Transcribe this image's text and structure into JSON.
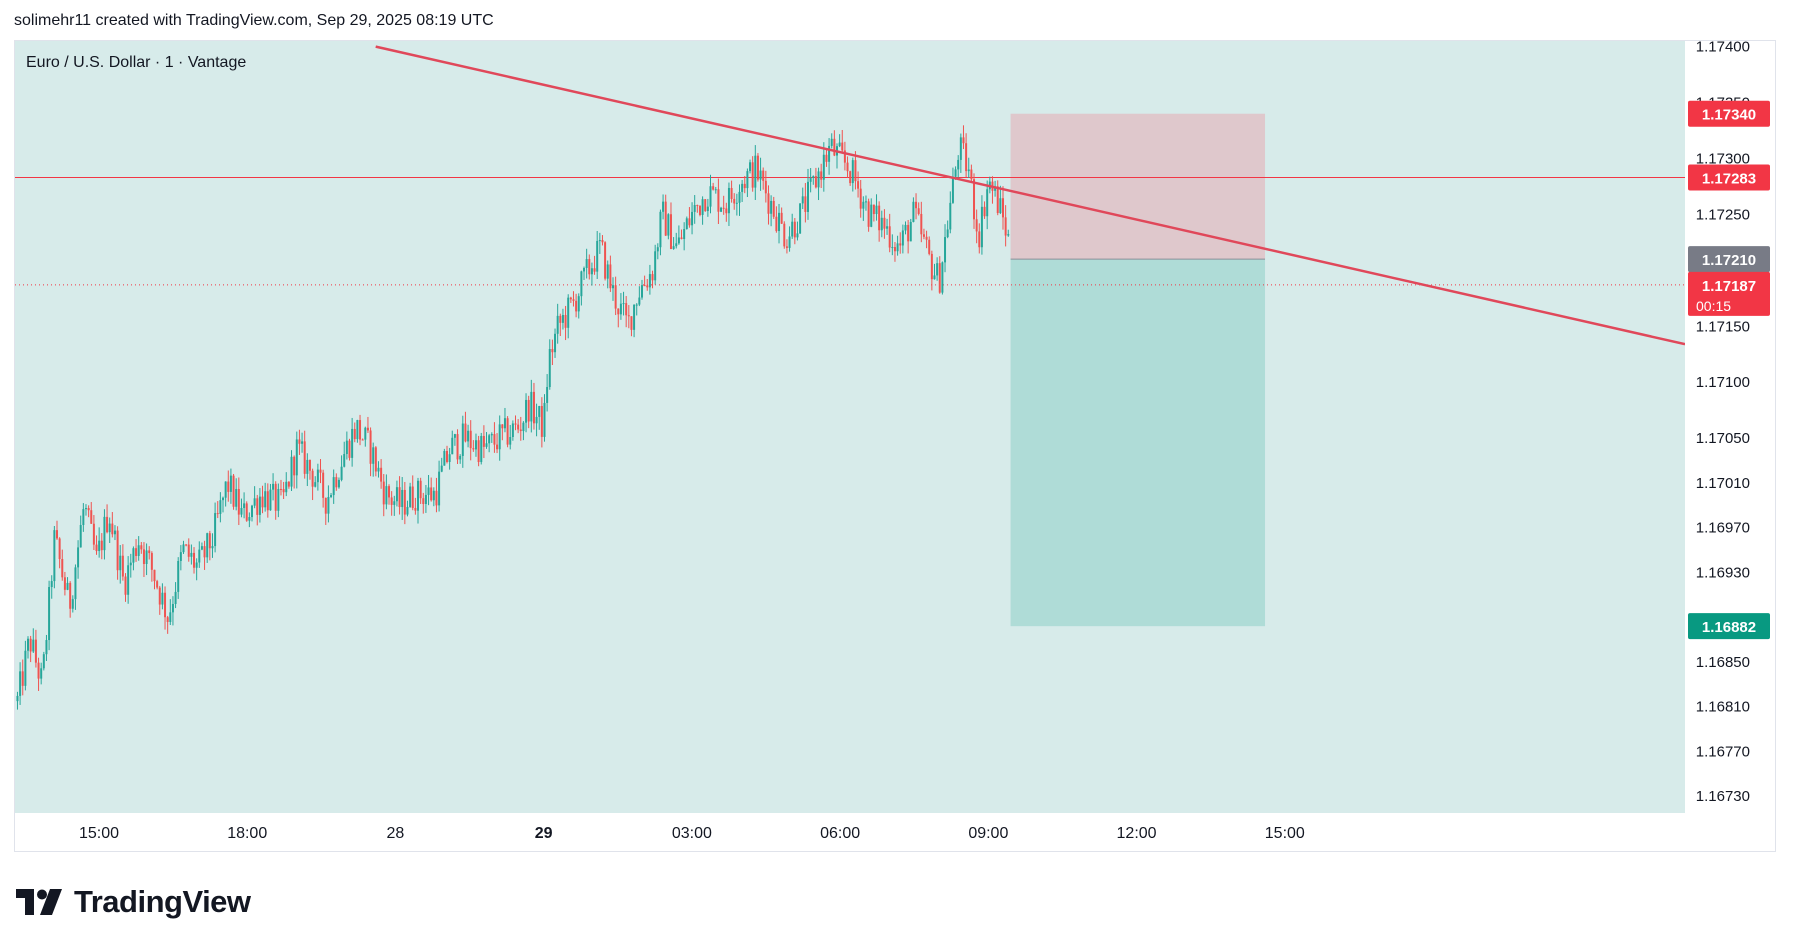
{
  "header": {
    "caption": "solimehr11 created with TradingView.com, Sep 29, 2025 08:19 UTC"
  },
  "chart_title": "Euro / U.S. Dollar · 1 · Vantage",
  "footer": {
    "logo_text": "TradingView"
  },
  "colors": {
    "background": "#d7ebea",
    "up_candle": "#26a69a",
    "down_candle": "#ef5350",
    "trendline": "#e0485a",
    "stop_zone": "#dfc8cc",
    "target_zone": "#afdcd7",
    "red_label": "#f23645",
    "green_label": "#089981",
    "gray_label": "#787b86"
  },
  "chart_data": {
    "type": "candlestick",
    "symbol": "Euro / U.S. Dollar",
    "interval": "1",
    "broker": "Vantage",
    "ylim": [
      1.16715,
      1.17405
    ],
    "y_ticks": [
      "1.17400",
      "1.17350",
      "1.17300",
      "1.17250",
      "1.17150",
      "1.17100",
      "1.17050",
      "1.17010",
      "1.16970",
      "1.16930",
      "1.16850",
      "1.16810",
      "1.16770",
      "1.16730"
    ],
    "x_ticks": [
      {
        "label": "15:00",
        "hour": 15,
        "bold": false
      },
      {
        "label": "18:00",
        "hour": 18,
        "bold": false
      },
      {
        "label": "28",
        "hour": 21,
        "bold": false
      },
      {
        "label": "29",
        "hour": 24,
        "bold": true
      },
      {
        "label": "03:00",
        "hour": 27,
        "bold": false
      },
      {
        "label": "06:00",
        "hour": 30,
        "bold": false
      },
      {
        "label": "09:00",
        "hour": 33,
        "bold": false
      },
      {
        "label": "12:00",
        "hour": 36,
        "bold": false
      },
      {
        "label": "15:00",
        "hour": 39,
        "bold": false
      }
    ],
    "x_range_hours": [
      13.3,
      47.1
    ],
    "price_path": [
      [
        13.35,
        1.16815
      ],
      [
        13.6,
        1.1687
      ],
      [
        13.85,
        1.1683
      ],
      [
        14.1,
        1.1696
      ],
      [
        14.4,
        1.169
      ],
      [
        14.7,
        1.1699
      ],
      [
        14.95,
        1.1694
      ],
      [
        15.2,
        1.16985
      ],
      [
        15.5,
        1.1692
      ],
      [
        15.8,
        1.1696
      ],
      [
        16.1,
        1.1693
      ],
      [
        16.4,
        1.1689
      ],
      [
        16.7,
        1.1695
      ],
      [
        17.0,
        1.16935
      ],
      [
        17.3,
        1.1696
      ],
      [
        17.6,
        1.1701
      ],
      [
        17.9,
        1.1698
      ],
      [
        18.3,
        1.17
      ],
      [
        18.7,
        1.1699
      ],
      [
        19.0,
        1.1704
      ],
      [
        19.3,
        1.1702
      ],
      [
        19.6,
        1.16995
      ],
      [
        19.9,
        1.1703
      ],
      [
        20.2,
        1.1706
      ],
      [
        20.5,
        1.1704
      ],
      [
        20.8,
        1.17
      ],
      [
        21.1,
        1.1699
      ],
      [
        21.4,
        1.17
      ],
      [
        21.8,
        1.17
      ],
      [
        22.1,
        1.1704
      ],
      [
        22.4,
        1.1705
      ],
      [
        22.8,
        1.1704
      ],
      [
        23.1,
        1.1705
      ],
      [
        23.5,
        1.1706
      ],
      [
        23.7,
        1.1708
      ],
      [
        24.0,
        1.1706
      ],
      [
        24.1,
        1.1712
      ],
      [
        24.3,
        1.1715
      ],
      [
        24.6,
        1.1717
      ],
      [
        24.9,
        1.172
      ],
      [
        25.15,
        1.1722
      ],
      [
        25.4,
        1.1718
      ],
      [
        25.7,
        1.1715
      ],
      [
        25.9,
        1.1718
      ],
      [
        26.2,
        1.172
      ],
      [
        26.4,
        1.1725
      ],
      [
        26.7,
        1.1722
      ],
      [
        27.0,
        1.1725
      ],
      [
        27.3,
        1.1727
      ],
      [
        27.7,
        1.1726
      ],
      [
        28.0,
        1.1728
      ],
      [
        28.3,
        1.1729
      ],
      [
        28.6,
        1.1726
      ],
      [
        28.9,
        1.1723
      ],
      [
        29.2,
        1.1725
      ],
      [
        29.5,
        1.1728
      ],
      [
        29.8,
        1.1731
      ],
      [
        30.0,
        1.173
      ],
      [
        30.2,
        1.1729
      ],
      [
        30.4,
        1.1727
      ],
      [
        30.6,
        1.1725
      ],
      [
        30.9,
        1.1724
      ],
      [
        31.2,
        1.1722
      ],
      [
        31.5,
        1.1725
      ],
      [
        31.8,
        1.1721
      ],
      [
        32.0,
        1.1719
      ],
      [
        32.2,
        1.1725
      ],
      [
        32.4,
        1.1731
      ],
      [
        32.6,
        1.1729
      ],
      [
        32.8,
        1.1723
      ],
      [
        33.0,
        1.1728
      ],
      [
        33.2,
        1.1726
      ],
      [
        33.4,
        1.1723
      ],
      [
        33.45,
        1.17187
      ]
    ],
    "current_time_hour": 33.45,
    "trendline": {
      "x1": 20.6,
      "y1": 1.174,
      "x2": 47.1,
      "y2": 1.17134
    },
    "horizontal_lines": [
      {
        "price": 1.17283,
        "style": "solid"
      },
      {
        "price": 1.17187,
        "style": "dotted"
      }
    ],
    "position": {
      "type": "short",
      "x_start_hour": 33.45,
      "x_end_hour": 38.6,
      "entry": 1.1721,
      "stop": 1.1734,
      "target": 1.16882
    },
    "price_labels": [
      {
        "price": 1.1734,
        "text": "1.17340",
        "kind": "stop"
      },
      {
        "price": 1.17283,
        "text": "1.17283",
        "kind": "line"
      },
      {
        "price": 1.1721,
        "text": "1.17210",
        "kind": "entry"
      },
      {
        "price": 1.17187,
        "text": "1.17187",
        "sub": "00:15",
        "kind": "last"
      },
      {
        "price": 1.16882,
        "text": "1.16882",
        "kind": "target"
      }
    ]
  }
}
